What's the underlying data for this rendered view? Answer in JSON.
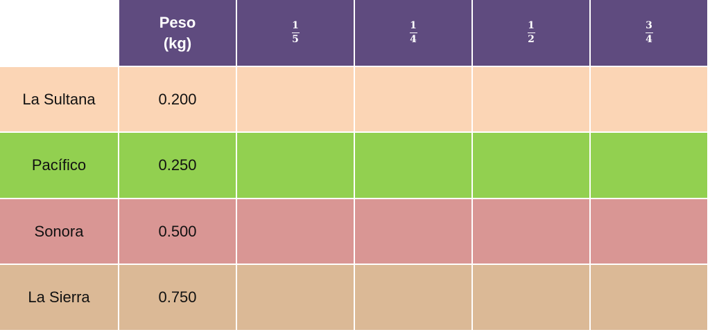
{
  "table": {
    "header_color": "#5f4b7f",
    "header": {
      "weight": [
        "Peso",
        "(kg)"
      ],
      "fractions": [
        {
          "numerator": "1",
          "denominator": "5"
        },
        {
          "numerator": "1",
          "denominator": "4"
        },
        {
          "numerator": "1",
          "denominator": "2"
        },
        {
          "numerator": "3",
          "denominator": "4"
        }
      ]
    },
    "rows": [
      {
        "name": "La Sultana",
        "weight": "0.200",
        "color": "#fbd5b5"
      },
      {
        "name": "Pacífico",
        "weight": "0.250",
        "color": "#92d050"
      },
      {
        "name": "Sonora",
        "weight": "0.500",
        "color": "#d99694"
      },
      {
        "name": "La Sierra",
        "weight": "0.750",
        "color": "#dbb996"
      }
    ]
  }
}
